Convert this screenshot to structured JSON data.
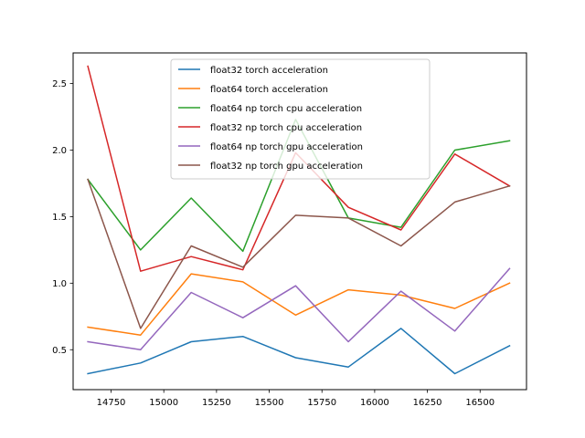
{
  "chart_data": {
    "type": "line",
    "title": "",
    "xlabel": "",
    "ylabel": "",
    "xlim": [
      14570,
      16720
    ],
    "ylim": [
      0.2,
      2.73
    ],
    "xticks": [
      14750,
      15000,
      15250,
      15500,
      15750,
      16000,
      16250,
      16500
    ],
    "yticks": [
      0.5,
      1.0,
      1.5,
      2.0,
      2.5
    ],
    "grid": false,
    "legend_position": "upper center",
    "x": [
      14640,
      14890,
      15130,
      15375,
      15625,
      15875,
      16125,
      16380,
      16640
    ],
    "series": [
      {
        "name": "float32 torch acceleration",
        "color": "#1f77b4",
        "values": [
          0.32,
          0.4,
          0.56,
          0.6,
          0.44,
          0.37,
          0.66,
          0.32,
          0.53
        ]
      },
      {
        "name": "float64 torch acceleration",
        "color": "#ff7f0e",
        "values": [
          0.67,
          0.61,
          1.07,
          1.01,
          0.76,
          0.95,
          0.91,
          0.81,
          1.0
        ]
      },
      {
        "name": "float64 np torch cpu acceleration",
        "color": "#2ca02c",
        "values": [
          1.78,
          1.25,
          1.64,
          1.24,
          2.23,
          1.49,
          1.42,
          2.0,
          2.07
        ]
      },
      {
        "name": "float32 np torch cpu acceleration",
        "color": "#d62728",
        "values": [
          2.63,
          1.09,
          1.2,
          1.1,
          1.98,
          1.57,
          1.4,
          1.97,
          1.73
        ]
      },
      {
        "name": "float64 np torch gpu acceleration",
        "color": "#9467bd",
        "values": [
          0.56,
          0.5,
          0.93,
          0.74,
          0.98,
          0.56,
          0.94,
          0.64,
          1.11
        ]
      },
      {
        "name": "float32 np torch gpu acceleration",
        "color": "#8c564b",
        "values": [
          1.78,
          0.66,
          1.28,
          1.12,
          1.51,
          1.49,
          1.28,
          1.61,
          1.73
        ]
      }
    ]
  }
}
